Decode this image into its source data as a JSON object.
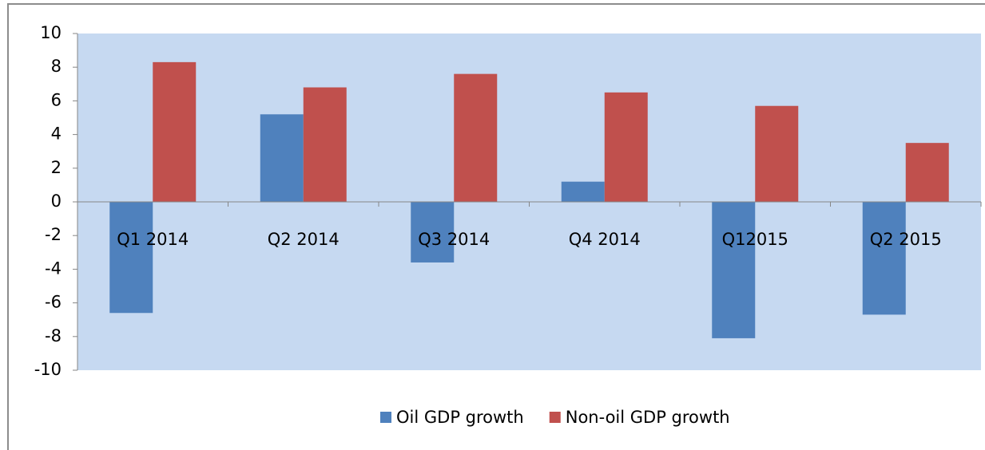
{
  "chart_data": {
    "type": "bar",
    "categories": [
      "Q1 2014",
      "Q2 2014",
      "Q3 2014",
      "Q4 2014",
      "Q12015",
      "Q2 2015"
    ],
    "series": [
      {
        "name": "Oil GDP growth",
        "color": "#4f81bd",
        "values": [
          -6.6,
          5.2,
          -3.6,
          1.2,
          -8.1,
          -6.7
        ]
      },
      {
        "name": "Non-oil GDP growth",
        "color": "#c0504d",
        "values": [
          8.3,
          6.8,
          7.6,
          6.5,
          5.7,
          3.5
        ]
      }
    ],
    "ylim": [
      -10,
      10
    ],
    "yticks": [
      -10,
      -8,
      -6,
      -4,
      -2,
      0,
      2,
      4,
      6,
      8,
      10
    ],
    "grid": false,
    "legend": "bottom",
    "plot_background": "#c6d9f1"
  }
}
